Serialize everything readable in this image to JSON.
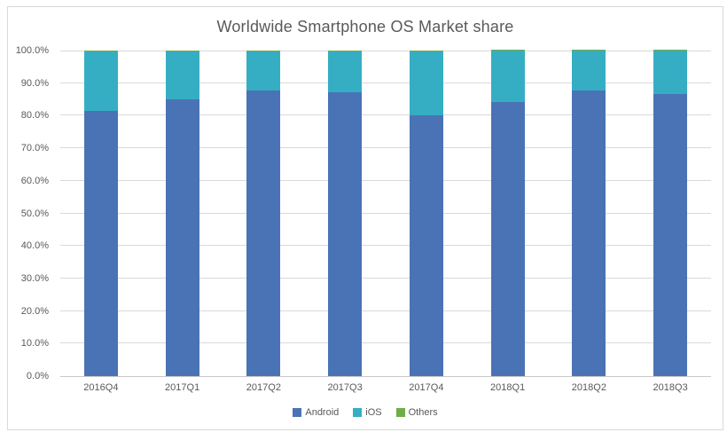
{
  "chart_data": {
    "type": "bar",
    "stacked": true,
    "title": "Worldwide Smartphone OS Market share",
    "categories": [
      "2016Q4",
      "2017Q1",
      "2017Q2",
      "2017Q3",
      "2017Q4",
      "2018Q1",
      "2018Q2",
      "2018Q3"
    ],
    "series": [
      {
        "name": "Android",
        "color": "#4a73b5",
        "values": [
          81.4,
          85.0,
          87.8,
          87.2,
          80.1,
          84.2,
          87.8,
          86.6
        ]
      },
      {
        "name": "iOS",
        "color": "#35aec4",
        "values": [
          18.2,
          14.7,
          12.0,
          12.6,
          19.7,
          15.7,
          12.1,
          13.3
        ]
      },
      {
        "name": "Others",
        "color": "#70ad47",
        "values": [
          0.4,
          0.3,
          0.2,
          0.2,
          0.2,
          0.1,
          0.1,
          0.1
        ]
      }
    ],
    "y_axis": {
      "min": 0,
      "max": 100,
      "tick_step": 10,
      "tick_labels": [
        "0.0%",
        "10.0%",
        "20.0%",
        "30.0%",
        "40.0%",
        "50.0%",
        "60.0%",
        "70.0%",
        "80.0%",
        "90.0%",
        "100.0%"
      ]
    },
    "xlabel": "",
    "ylabel": "",
    "grid": true,
    "legend_position": "bottom"
  },
  "colors": {
    "gridline": "#d9d9d9",
    "axis_line": "#c9c9c9",
    "text": "#595959",
    "border": "#d9d9d9",
    "background": "#ffffff"
  }
}
